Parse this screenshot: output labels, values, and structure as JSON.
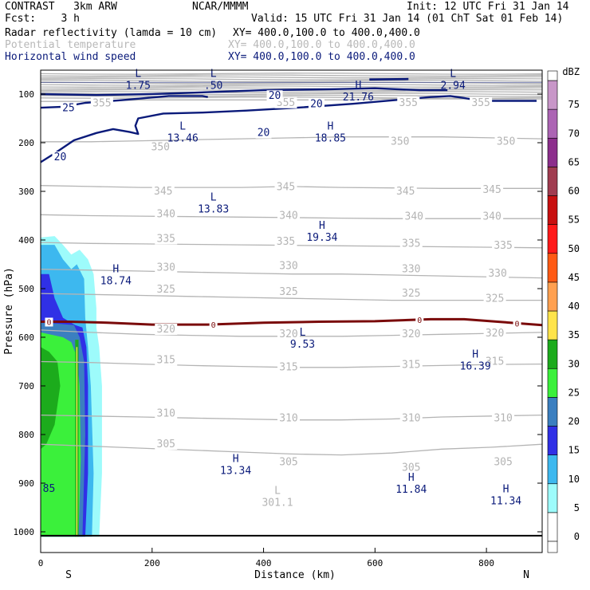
{
  "header": {
    "model": "CONTRAST   3km ARW",
    "org": "NCAR/MMMM",
    "init": "Init: 12 UTC Fri 31 Jan 14",
    "fcst": "Fcst:    3 h",
    "valid": "Valid: 15 UTC Fri 31 Jan 14 (01 ChT Sat 01 Feb 14)",
    "line1_name": "Radar reflectivity (lamda = 10 cm)",
    "line1_xy": "XY= 400.0,100.0 to 400.0,400.0",
    "line2_name": "Potential temperature",
    "line2_xy": "XY= 400.0,100.0 to 400.0,400.0",
    "line3_name": "Horizontal wind speed",
    "line3_xy": "XY= 400.0,100.0 to 400.0,400.0"
  },
  "colors": {
    "theta": "#b4b4b4",
    "wind": "#0a1a7a",
    "freezing": "#7a0a0a",
    "text": "#000000"
  },
  "chart_data": {
    "type": "contour",
    "xlabel": "Distance (km)",
    "ylabel": "Pressure (hPa)",
    "xlim": [
      0,
      900
    ],
    "ylim": [
      1040,
      50
    ],
    "x_ticks": [
      "0",
      "200",
      "400",
      "600",
      "800"
    ],
    "y_ticks": [
      "100",
      "200",
      "300",
      "400",
      "500",
      "600",
      "700",
      "800",
      "900",
      "1000"
    ],
    "end_labels": {
      "left": "S",
      "right": "N"
    },
    "colorbar": {
      "unit": "dBZ",
      "levels": [
        "0",
        "5",
        "10",
        "15",
        "20",
        "25",
        "30",
        "35",
        "40",
        "45",
        "50",
        "55",
        "60",
        "65",
        "70",
        "75"
      ],
      "colors": [
        "#ffffff",
        "#9dfbfb",
        "#3db8ef",
        "#3030e6",
        "#3b7fc0",
        "#3bf03b",
        "#1cab1c",
        "#ffe44a",
        "#ffa050",
        "#ff5a14",
        "#ff1a1a",
        "#c81010",
        "#a03c50",
        "#8c2e8c",
        "#ac64b4",
        "#c896c8"
      ]
    },
    "theta_contours": [
      {
        "label": "305",
        "p": [
          820,
          824,
          828,
          832,
          836,
          840,
          842,
          838,
          830,
          826,
          820
        ]
      },
      {
        "label": "310",
        "p": [
          760,
          762,
          764,
          766,
          768,
          770,
          770,
          768,
          764,
          762,
          760
        ]
      },
      {
        "label": "315",
        "p": [
          650,
          652,
          655,
          658,
          660,
          662,
          662,
          660,
          658,
          656,
          655
        ]
      },
      {
        "label": "320",
        "p": [
          585,
          590,
          594,
          596,
          598,
          598,
          598,
          596,
          594,
          592,
          590
        ]
      },
      {
        "label": "325",
        "p": [
          510,
          512,
          514,
          516,
          518,
          520,
          522,
          524,
          524,
          524,
          524
        ]
      },
      {
        "label": "330",
        "p": [
          460,
          462,
          464,
          466,
          468,
          470,
          470,
          472,
          474,
          476,
          478
        ]
      },
      {
        "label": "335",
        "p": [
          405,
          407,
          408,
          409,
          410,
          411,
          412,
          413,
          414,
          415,
          416
        ]
      },
      {
        "label": "340",
        "p": [
          348,
          350,
          351,
          352,
          353,
          354,
          355,
          356,
          356,
          356,
          356
        ]
      },
      {
        "label": "345",
        "p": [
          288,
          290,
          292,
          292,
          292,
          290,
          292,
          293,
          294,
          294,
          294
        ]
      },
      {
        "label": "350",
        "p": [
          198,
          198,
          196,
          194,
          192,
          190,
          188,
          188,
          188,
          190,
          192
        ]
      },
      {
        "label": "355",
        "p": [
          115,
          115,
          112,
          112,
          112,
          112,
          112,
          110,
          110,
          110,
          110
        ]
      }
    ],
    "theta_labels": [
      {
        "text": "355",
        "x": 110,
        "p": 117
      },
      {
        "text": "355",
        "x": 440,
        "p": 116
      },
      {
        "text": "355",
        "x": 660,
        "p": 116
      },
      {
        "text": "355",
        "x": 790,
        "p": 116
      },
      {
        "text": "350",
        "x": 215,
        "p": 207
      },
      {
        "text": "350",
        "x": 645,
        "p": 196
      },
      {
        "text": "350",
        "x": 835,
        "p": 196
      },
      {
        "text": "345",
        "x": 220,
        "p": 298
      },
      {
        "text": "345",
        "x": 440,
        "p": 289
      },
      {
        "text": "345",
        "x": 655,
        "p": 298
      },
      {
        "text": "345",
        "x": 810,
        "p": 295
      },
      {
        "text": "340",
        "x": 225,
        "p": 345
      },
      {
        "text": "340",
        "x": 445,
        "p": 348
      },
      {
        "text": "340",
        "x": 670,
        "p": 350
      },
      {
        "text": "340",
        "x": 810,
        "p": 350
      },
      {
        "text": "335",
        "x": 225,
        "p": 396
      },
      {
        "text": "335",
        "x": 440,
        "p": 402
      },
      {
        "text": "335",
        "x": 665,
        "p": 406
      },
      {
        "text": "335",
        "x": 830,
        "p": 410
      },
      {
        "text": "330",
        "x": 225,
        "p": 455
      },
      {
        "text": "330",
        "x": 445,
        "p": 452
      },
      {
        "text": "330",
        "x": 665,
        "p": 458
      },
      {
        "text": "330",
        "x": 820,
        "p": 467
      },
      {
        "text": "325",
        "x": 225,
        "p": 500
      },
      {
        "text": "325",
        "x": 445,
        "p": 505
      },
      {
        "text": "325",
        "x": 665,
        "p": 508
      },
      {
        "text": "325",
        "x": 815,
        "p": 519
      },
      {
        "text": "320",
        "x": 225,
        "p": 582
      },
      {
        "text": "320",
        "x": 445,
        "p": 592
      },
      {
        "text": "320",
        "x": 665,
        "p": 592
      },
      {
        "text": "320",
        "x": 815,
        "p": 590
      },
      {
        "text": "315",
        "x": 225,
        "p": 645
      },
      {
        "text": "315",
        "x": 445,
        "p": 660
      },
      {
        "text": "315",
        "x": 665,
        "p": 655
      },
      {
        "text": "315",
        "x": 815,
        "p": 648
      },
      {
        "text": "310",
        "x": 225,
        "p": 755
      },
      {
        "text": "310",
        "x": 445,
        "p": 765
      },
      {
        "text": "310",
        "x": 665,
        "p": 765
      },
      {
        "text": "310",
        "x": 830,
        "p": 765
      },
      {
        "text": "305",
        "x": 225,
        "p": 818
      },
      {
        "text": "305",
        "x": 445,
        "p": 855
      },
      {
        "text": "305",
        "x": 665,
        "p": 866
      },
      {
        "text": "305",
        "x": 830,
        "p": 855
      }
    ],
    "wind_contours": [
      {
        "label": "20",
        "points": [
          [
            0,
            100
          ],
          [
            100,
            102
          ],
          [
            200,
            100
          ],
          [
            300,
            96
          ],
          [
            400,
            92
          ],
          [
            520,
            90
          ],
          [
            600,
            88
          ],
          [
            680,
            92
          ],
          [
            730,
            92
          ]
        ]
      },
      {
        "label": "25",
        "points": [
          [
            0,
            128
          ],
          [
            40,
            126
          ],
          [
            80,
            118
          ],
          [
            140,
            113
          ],
          [
            230,
            104
          ],
          [
            290,
            104
          ],
          [
            300,
            106
          ]
        ]
      },
      {
        "label": "20",
        "points": [
          [
            0,
            240
          ],
          [
            25,
            222
          ],
          [
            60,
            195
          ],
          [
            100,
            180
          ],
          [
            130,
            172
          ],
          [
            160,
            178
          ],
          [
            175,
            182
          ],
          [
            170,
            165
          ],
          [
            175,
            150
          ],
          [
            220,
            140
          ],
          [
            290,
            138
          ],
          [
            370,
            134
          ],
          [
            460,
            128
          ],
          [
            560,
            120
          ],
          [
            640,
            112
          ],
          [
            700,
            106
          ],
          [
            735,
            104
          ],
          [
            760,
            108
          ],
          [
            790,
            114
          ],
          [
            890,
            114
          ]
        ]
      }
    ],
    "wind_labels": [
      {
        "text": "20",
        "x": 420,
        "p": 102
      },
      {
        "text": "20",
        "x": 495,
        "p": 119
      },
      {
        "text": "25",
        "x": 50,
        "p": 127
      },
      {
        "text": "20",
        "x": 400,
        "p": 178
      },
      {
        "text": "20",
        "x": 35,
        "p": 228
      }
    ],
    "freezing_level": {
      "label": "0",
      "points": [
        [
          0,
          568
        ],
        [
          50,
          568
        ],
        [
          120,
          570
        ],
        [
          200,
          574
        ],
        [
          300,
          574
        ],
        [
          400,
          570
        ],
        [
          500,
          568
        ],
        [
          600,
          567
        ],
        [
          700,
          563
        ],
        [
          760,
          563
        ],
        [
          820,
          568
        ],
        [
          900,
          575
        ]
      ],
      "label_x": [
        15,
        310,
        680,
        855
      ]
    },
    "extrema": [
      {
        "kind": "L",
        "value": "1.75",
        "x": 175,
        "p": 68
      },
      {
        "kind": "L",
        "value": ".50",
        "x": 310,
        "p": 68
      },
      {
        "kind": "L",
        "value": "2.94",
        "x": 740,
        "p": 68
      },
      {
        "kind": "H",
        "value": "21.76",
        "x": 570,
        "p": 92
      },
      {
        "kind": "L",
        "value": "13.46",
        "x": 255,
        "p": 176
      },
      {
        "kind": "H",
        "value": "18.85",
        "x": 520,
        "p": 176
      },
      {
        "kind": "L",
        "value": "13.83",
        "x": 310,
        "p": 322
      },
      {
        "kind": "H",
        "value": "19.34",
        "x": 505,
        "p": 380
      },
      {
        "kind": "H",
        "value": "18.74",
        "x": 135,
        "p": 470
      },
      {
        "kind": "L",
        "value": "9.53",
        "x": 470,
        "p": 600
      },
      {
        "kind": "H",
        "value": "16.39",
        "x": 780,
        "p": 645
      },
      {
        "kind": "H",
        "value": "13.34",
        "x": 350,
        "p": 860
      },
      {
        "kind": "H",
        "value": "11.84",
        "x": 665,
        "p": 898
      },
      {
        "kind": "L",
        "value": "301.1",
        "x": 425,
        "p": 925
      },
      {
        "kind": "H",
        "value": "11.34",
        "x": 835,
        "p": 922
      },
      {
        "kind": "",
        "value": "85",
        "x": 15,
        "p": 897
      }
    ],
    "reflectivity_regions": [
      {
        "dbz": 5,
        "points": [
          [
            0,
            1010
          ],
          [
            0,
            395
          ],
          [
            25,
            392
          ],
          [
            40,
            410
          ],
          [
            55,
            430
          ],
          [
            70,
            420
          ],
          [
            85,
            440
          ],
          [
            95,
            470
          ],
          [
            100,
            540
          ],
          [
            100,
            580
          ],
          [
            105,
            620
          ],
          [
            110,
            700
          ],
          [
            110,
            880
          ],
          [
            105,
            1010
          ]
        ]
      },
      {
        "dbz": 10,
        "points": [
          [
            0,
            1010
          ],
          [
            0,
            410
          ],
          [
            25,
            410
          ],
          [
            40,
            440
          ],
          [
            55,
            460
          ],
          [
            65,
            450
          ],
          [
            78,
            480
          ],
          [
            80,
            560
          ],
          [
            85,
            620
          ],
          [
            90,
            700
          ],
          [
            95,
            880
          ],
          [
            92,
            1010
          ]
        ]
      },
      {
        "dbz": 15,
        "points": [
          [
            0,
            1010
          ],
          [
            0,
            470
          ],
          [
            15,
            470
          ],
          [
            25,
            520
          ],
          [
            40,
            560
          ],
          [
            62,
            575
          ],
          [
            75,
            580
          ],
          [
            82,
            620
          ],
          [
            85,
            700
          ],
          [
            85,
            880
          ],
          [
            80,
            1010
          ]
        ]
      },
      {
        "dbz": 20,
        "points": [
          [
            0,
            1010
          ],
          [
            0,
            570
          ],
          [
            30,
            572
          ],
          [
            60,
            575
          ],
          [
            70,
            600
          ],
          [
            78,
            650
          ],
          [
            80,
            800
          ],
          [
            75,
            1010
          ]
        ]
      },
      {
        "dbz": 25,
        "points": [
          [
            0,
            1010
          ],
          [
            0,
            590
          ],
          [
            40,
            600
          ],
          [
            55,
            610
          ],
          [
            65,
            640
          ],
          [
            70,
            700
          ],
          [
            72,
            850
          ],
          [
            68,
            1010
          ]
        ]
      },
      {
        "dbz": 30,
        "points": [
          [
            0,
            620
          ],
          [
            15,
            630
          ],
          [
            30,
            650
          ],
          [
            35,
            700
          ],
          [
            25,
            780
          ],
          [
            10,
            820
          ],
          [
            0,
            830
          ]
        ]
      },
      {
        "dbz": 30,
        "points": [
          [
            62,
            1010
          ],
          [
            62,
            605
          ],
          [
            68,
            605
          ],
          [
            68,
            1010
          ]
        ]
      },
      {
        "dbz": 35,
        "points": [
          [
            64,
            1010
          ],
          [
            64,
            620
          ],
          [
            66,
            620
          ],
          [
            66,
            1010
          ]
        ]
      }
    ],
    "surface": [
      [
        0,
        1008
      ],
      [
        900,
        1008
      ]
    ]
  }
}
